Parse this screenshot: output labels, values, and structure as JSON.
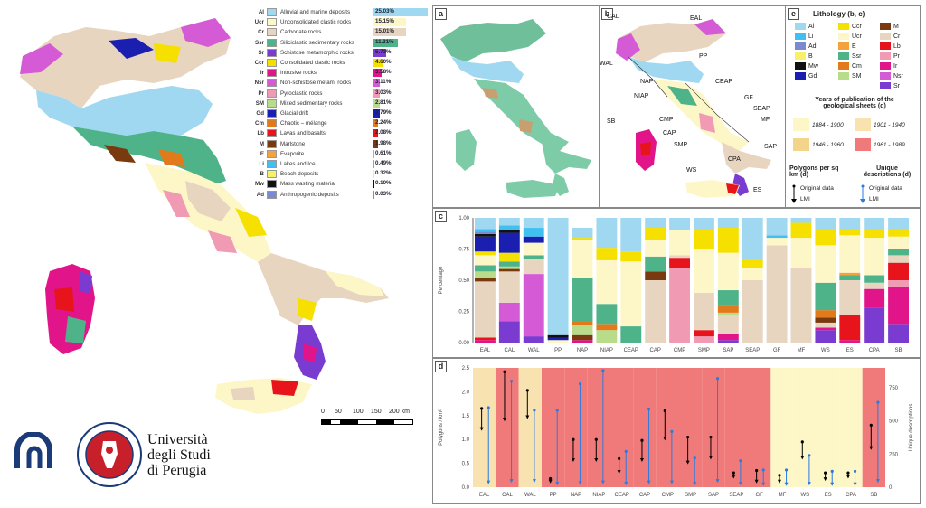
{
  "legend": {
    "items": [
      {
        "code": "Al",
        "name": "Alluvial and marine deposits",
        "pct": "25.03%",
        "color": "#9fd8f0",
        "frac": 0.25
      },
      {
        "code": "Ucr",
        "name": "Unconsolidated clastic rocks",
        "pct": "15.15%",
        "color": "#fdf7c8",
        "frac": 0.1515
      },
      {
        "code": "Cr",
        "name": "Carbonate rocks",
        "pct": "15.01%",
        "color": "#e8d5c0",
        "frac": 0.1501
      },
      {
        "code": "Ssr",
        "name": "Siliciclastic sedimentary rocks",
        "pct": "11.31%",
        "color": "#4fb38a",
        "frac": 0.1131
      },
      {
        "code": "Sr",
        "name": "Schistose metamorphic rocks",
        "pct": "5.73%",
        "color": "#7a3bd0",
        "frac": 0.0573
      },
      {
        "code": "Ccr",
        "name": "Consolidated clastic rocks",
        "pct": "4.60%",
        "color": "#f5e000",
        "frac": 0.046
      },
      {
        "code": "Ir",
        "name": "Intrusive rocks",
        "pct": "3.58%",
        "color": "#e2148a",
        "frac": 0.0358
      },
      {
        "code": "Nsr",
        "name": "Non-schistose metam. rocks",
        "pct": "3.11%",
        "color": "#d55ad6",
        "frac": 0.0311
      },
      {
        "code": "Pr",
        "name": "Pyroclastic rocks",
        "pct": "3.03%",
        "color": "#f09ab4",
        "frac": 0.0303
      },
      {
        "code": "SM",
        "name": "Mixed sedimentary rocks",
        "pct": "2.81%",
        "color": "#b9dc8a",
        "frac": 0.0281
      },
      {
        "code": "Gd",
        "name": "Glacial drift",
        "pct": "2.79%",
        "color": "#1a1fb0",
        "frac": 0.0279
      },
      {
        "code": "Cm",
        "name": "Chaotic – mélange",
        "pct": "2.24%",
        "color": "#e07a1a",
        "frac": 0.0224
      },
      {
        "code": "Lb",
        "name": "Lavas and basalts",
        "pct": "2.08%",
        "color": "#e8141c",
        "frac": 0.0208
      },
      {
        "code": "M",
        "name": "Marlstone",
        "pct": "1.98%",
        "color": "#7a3a10",
        "frac": 0.0198
      },
      {
        "code": "E",
        "name": "Evaporite",
        "pct": "0.61%",
        "color": "#f4a23c",
        "frac": 0.0061
      },
      {
        "code": "Li",
        "name": "Lakes and Ice",
        "pct": "0.49%",
        "color": "#3fc0f0",
        "frac": 0.0049
      },
      {
        "code": "B",
        "name": "Beach deposits",
        "pct": "0.32%",
        "color": "#f6f06a",
        "frac": 0.0032
      },
      {
        "code": "Mw",
        "name": "Mass wasting material",
        "pct": "0.10%",
        "color": "#111111",
        "frac": 0.001
      },
      {
        "code": "Ad",
        "name": "Anthropogenic deposits",
        "pct": "0.03%",
        "color": "#7a8ad0",
        "frac": 0.0003
      }
    ]
  },
  "scalebar": {
    "ticks": [
      "0",
      "50",
      "100",
      "150",
      "200 km"
    ]
  },
  "university": {
    "line1": "Università",
    "line2": "degli Studi",
    "line3": "di Perugia"
  },
  "panels": {
    "a": "a",
    "b": "b",
    "c": "c",
    "d": "d",
    "e": "e",
    "regions": [
      "CAL",
      "EAL",
      "WAL",
      "PP",
      "NAP",
      "NIAP",
      "CEAP",
      "GF",
      "SEAP",
      "MF",
      "CMP",
      "CAP",
      "SMP",
      "SAP",
      "SB",
      "CPA",
      "WS",
      "ES"
    ]
  },
  "lithology_legend": {
    "title": "Lithology (b, c)",
    "col1": [
      {
        "code": "Al",
        "color": "#9fd8f0"
      },
      {
        "code": "Li",
        "color": "#3fc0f0"
      },
      {
        "code": "Ad",
        "color": "#7a8ad0"
      },
      {
        "code": "B",
        "color": "#f6f06a"
      },
      {
        "code": "Mw",
        "color": "#111111"
      },
      {
        "code": "Gd",
        "color": "#1a1fb0"
      }
    ],
    "col2": [
      {
        "code": "Ccr",
        "color": "#f5e000"
      },
      {
        "code": "Ucr",
        "color": "#fdf7c8"
      },
      {
        "code": "E",
        "color": "#f4a23c"
      },
      {
        "code": "Ssr",
        "color": "#4fb38a"
      },
      {
        "code": "Cm",
        "color": "#e07a1a"
      },
      {
        "code": "SM",
        "color": "#b9dc8a"
      }
    ],
    "col3": [
      {
        "code": "M",
        "color": "#7a3a10"
      },
      {
        "code": "Cr",
        "color": "#e8d5c0"
      },
      {
        "code": "Lb",
        "color": "#e8141c"
      },
      {
        "code": "Pr",
        "color": "#f09ab4"
      },
      {
        "code": "Ir",
        "color": "#e2148a"
      },
      {
        "code": "Nsr",
        "color": "#d55ad6"
      },
      {
        "code": "Sr",
        "color": "#7a3bd0"
      }
    ],
    "years_title": "Years of publication of the geological sheets (d)",
    "years": [
      {
        "label": "1884 - 1900",
        "color": "#fdf7c8"
      },
      {
        "label": "1901 - 1940",
        "color": "#f8e3b0"
      },
      {
        "label": "1946 - 1960",
        "color": "#f2d48a"
      },
      {
        "label": "1961 - 1989",
        "color": "#f07a7a"
      }
    ],
    "poly_title": "Polygons per sq km (d)",
    "uniq_title": "Unique descriptions (d)",
    "orig": "Original data",
    "lmi": "LMI"
  },
  "chart_data": [
    {
      "type": "bar",
      "panel": "c",
      "ylabel": "Percentage",
      "ylim": [
        0,
        1.0
      ],
      "yticks": [
        "0.00",
        "0.25",
        "0.50",
        "0.75",
        "1.00"
      ],
      "categories": [
        "EAL",
        "CAL",
        "WAL",
        "PP",
        "NAP",
        "NIAP",
        "CEAP",
        "CAP",
        "CMP",
        "SMP",
        "SAP",
        "SEAP",
        "GF",
        "MF",
        "WS",
        "ES",
        "CPA",
        "SB"
      ],
      "stacked": true,
      "series_order": [
        "Sr",
        "Nsr",
        "Ir",
        "Pr",
        "Lb",
        "Cr",
        "M",
        "SM",
        "Cm",
        "Ssr",
        "E",
        "Ucr",
        "Ccr",
        "Gd",
        "Mw",
        "B",
        "Ad",
        "Li",
        "Al"
      ],
      "stacks": [
        {
          "Cr": 0.45,
          "Ssr": 0.05,
          "Ir": 0.02,
          "Lb": 0.02,
          "M": 0.03,
          "SM": 0.05,
          "Ucr": 0.08,
          "Ccr": 0.03,
          "Gd": 0.12,
          "Mw": 0.02,
          "Ad": 0.02,
          "Li": 0.02,
          "Al": 0.09
        },
        {
          "Sr": 0.17,
          "Nsr": 0.15,
          "Cr": 0.25,
          "Ssr": 0.04,
          "M": 0.02,
          "SM": 0.02,
          "Ccr": 0.07,
          "Gd": 0.16,
          "Mw": 0.02,
          "Li": 0.04,
          "Al": 0.06
        },
        {
          "Sr": 0.05,
          "Nsr": 0.5,
          "Cr": 0.12,
          "Ssr": 0.03,
          "Ucr": 0.1,
          "Gd": 0.05,
          "Li": 0.07,
          "Al": 0.08
        },
        {
          "Ucr": 0.02,
          "Gd": 0.02,
          "Mw": 0.02,
          "Al": 0.94
        },
        {
          "Ir": 0.02,
          "M": 0.04,
          "SM": 0.08,
          "Cm": 0.03,
          "Ssr": 0.35,
          "Ucr": 0.3,
          "Ccr": 0.02,
          "Al": 0.08
        },
        {
          "SM": 0.1,
          "Cm": 0.05,
          "Ssr": 0.16,
          "Ucr": 0.35,
          "Ccr": 0.1,
          "Al": 0.24
        },
        {
          "Ssr": 0.13,
          "Ucr": 0.52,
          "Ccr": 0.08,
          "Al": 0.27
        },
        {
          "Cr": 0.5,
          "M": 0.07,
          "Ssr": 0.12,
          "Ucr": 0.13,
          "Ccr": 0.1,
          "Al": 0.08
        },
        {
          "Pr": 0.6,
          "Lb": 0.08,
          "Cr": 0.02,
          "Ucr": 0.2,
          "Al": 0.1
        },
        {
          "Pr": 0.05,
          "Lb": 0.05,
          "Cr": 0.3,
          "Ucr": 0.35,
          "Ccr": 0.15,
          "Al": 0.1
        },
        {
          "Sr": 0.02,
          "Ir": 0.05,
          "Cr": 0.15,
          "SM": 0.02,
          "Cm": 0.06,
          "Ssr": 0.12,
          "Ucr": 0.3,
          "Ccr": 0.2,
          "Al": 0.08
        },
        {
          "Cr": 0.5,
          "Ucr": 0.1,
          "Ccr": 0.06,
          "Al": 0.34
        },
        {
          "Cr": 0.78,
          "Ucr": 0.06,
          "Li": 0.02,
          "Al": 0.14
        },
        {
          "Cr": 0.6,
          "Ucr": 0.24,
          "Ccr": 0.12,
          "Al": 0.04
        },
        {
          "Sr": 0.1,
          "Ir": 0.02,
          "Cr": 0.04,
          "M": 0.04,
          "Cm": 0.06,
          "Ssr": 0.22,
          "Ucr": 0.3,
          "Ccr": 0.12,
          "Al": 0.1
        },
        {
          "Lb": 0.2,
          "Ir": 0.02,
          "Cr": 0.28,
          "Ssr": 0.04,
          "E": 0.02,
          "Ucr": 0.3,
          "Ccr": 0.04,
          "Al": 0.1
        },
        {
          "Sr": 0.28,
          "Ir": 0.15,
          "Cr": 0.05,
          "Ssr": 0.06,
          "Ucr": 0.3,
          "Ccr": 0.06,
          "Al": 0.1
        },
        {
          "Sr": 0.15,
          "Ir": 0.3,
          "Lb": 0.14,
          "Pr": 0.05,
          "Cr": 0.06,
          "Ssr": 0.05,
          "Ucr": 0.1,
          "Ccr": 0.05,
          "Al": 0.1
        }
      ]
    },
    {
      "type": "scatter",
      "panel": "d",
      "ylabel": "Polygons / km²",
      "y2label": "Unique descriptions",
      "ylim": [
        0,
        2.5
      ],
      "y2lim": [
        0,
        900
      ],
      "yticks": [
        "0.0",
        "0.5",
        "1.0",
        "1.5",
        "2.0",
        "2.5"
      ],
      "y2ticks": [
        "0",
        "250",
        "500",
        "750"
      ],
      "categories": [
        "EAL",
        "CAL",
        "WAL",
        "PP",
        "NAP",
        "NIAP",
        "CEAP",
        "CAP",
        "CMP",
        "SMP",
        "SAP",
        "SEAP",
        "GF",
        "MF",
        "WS",
        "ES",
        "CPA",
        "SB"
      ],
      "period": [
        "1901-1940",
        "1961-1989",
        "1901-1940",
        "1961-1989",
        "1961-1989",
        "1961-1989",
        "1961-1989",
        "1961-1989",
        "1961-1989",
        "1961-1989",
        "1961-1989",
        "1961-1989",
        "1961-1989",
        "1884-1900",
        "1884-1900",
        "1884-1900",
        "1884-1900",
        "1961-1989"
      ],
      "polygons_original": [
        1.65,
        2.42,
        2.03,
        0.18,
        1.0,
        1.0,
        0.6,
        0.98,
        1.6,
        1.05,
        1.05,
        0.3,
        0.35,
        0.25,
        0.95,
        0.3,
        0.3,
        1.3
      ],
      "polygons_lmi": [
        1.2,
        1.4,
        1.45,
        0.1,
        0.55,
        0.55,
        0.3,
        0.55,
        1.0,
        0.5,
        0.6,
        0.2,
        0.1,
        0.1,
        0.6,
        0.15,
        0.2,
        0.8
      ],
      "unique_original": [
        600,
        800,
        580,
        580,
        780,
        880,
        270,
        590,
        420,
        220,
        820,
        200,
        130,
        130,
        240,
        120,
        120,
        640
      ],
      "unique_lmi": [
        30,
        40,
        40,
        20,
        25,
        30,
        20,
        30,
        30,
        20,
        40,
        20,
        15,
        15,
        20,
        15,
        15,
        40
      ]
    }
  ]
}
